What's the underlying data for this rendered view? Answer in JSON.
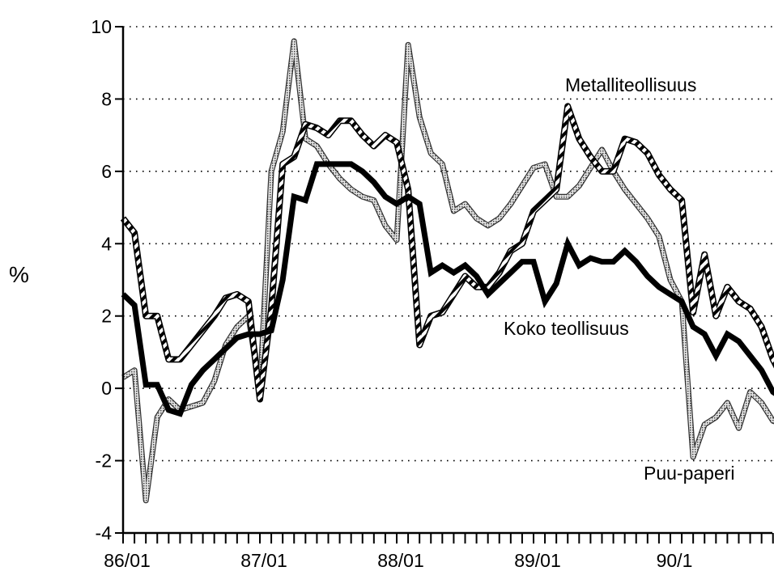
{
  "chart_data": {
    "type": "line",
    "ylabel": "%",
    "ylim": [
      -4,
      10
    ],
    "yticks": [
      10,
      8,
      6,
      4,
      2,
      0,
      -2,
      -4
    ],
    "ytick_labels": [
      "10",
      "8",
      "6",
      "4",
      "2",
      "0",
      "-2",
      "-4"
    ],
    "xlim": [
      0,
      57
    ],
    "xtick_labels": [
      {
        "index": 0,
        "label": "86/01"
      },
      {
        "index": 12,
        "label": "87/01"
      },
      {
        "index": 24,
        "label": "88/01"
      },
      {
        "index": 36,
        "label": "89/01"
      },
      {
        "index": 48,
        "label": "90/1"
      }
    ],
    "grid": "horizontal dotted",
    "series": [
      {
        "name": "Metalliteollisuus",
        "style": "hatched",
        "values": [
          4.7,
          4.3,
          2.0,
          2.0,
          0.8,
          0.8,
          1.2,
          1.6,
          2.0,
          2.5,
          2.6,
          2.4,
          -0.3,
          2.2,
          6.2,
          6.4,
          7.3,
          7.2,
          7.0,
          7.4,
          7.4,
          7.0,
          6.7,
          7.0,
          6.8,
          5.5,
          1.2,
          2.0,
          2.1,
          2.6,
          3.1,
          2.8,
          2.8,
          3.2,
          3.8,
          4.0,
          4.9,
          5.2,
          5.5,
          7.8,
          6.9,
          6.4,
          6.0,
          6.0,
          6.9,
          6.8,
          6.5,
          5.9,
          5.5,
          5.2,
          2.1,
          3.7,
          2.0,
          2.8,
          2.4,
          2.2,
          1.7,
          0.8,
          0.2
        ]
      },
      {
        "name": "Koko teollisuus",
        "style": "bold",
        "values": [
          2.6,
          2.3,
          0.1,
          0.1,
          -0.6,
          -0.7,
          0.1,
          0.5,
          0.8,
          1.1,
          1.4,
          1.5,
          1.5,
          1.6,
          3.0,
          5.3,
          5.2,
          6.2,
          6.2,
          6.2,
          6.2,
          6.0,
          5.7,
          5.3,
          5.1,
          5.3,
          5.1,
          3.2,
          3.4,
          3.2,
          3.4,
          3.1,
          2.6,
          2.9,
          3.2,
          3.5,
          3.5,
          2.4,
          2.9,
          4.0,
          3.4,
          3.6,
          3.5,
          3.5,
          3.8,
          3.5,
          3.1,
          2.8,
          2.6,
          2.4,
          1.7,
          1.5,
          0.9,
          1.5,
          1.3,
          0.9,
          0.5,
          -0.1,
          -0.3
        ]
      },
      {
        "name": "Puu-paperi",
        "style": "dotted",
        "values": [
          0.3,
          0.5,
          -3.1,
          -0.8,
          -0.3,
          -0.6,
          -0.5,
          -0.4,
          0.2,
          1.2,
          1.7,
          2.0,
          -0.1,
          6.0,
          7.1,
          9.6,
          6.9,
          6.7,
          6.2,
          5.8,
          5.5,
          5.3,
          5.2,
          4.5,
          4.1,
          9.5,
          7.5,
          6.5,
          6.2,
          4.9,
          5.1,
          4.7,
          4.5,
          4.7,
          5.1,
          5.6,
          6.1,
          6.2,
          5.3,
          5.3,
          5.6,
          6.1,
          6.6,
          6.0,
          5.5,
          5.1,
          4.7,
          4.2,
          3.0,
          2.4,
          -1.9,
          -1.0,
          -0.8,
          -0.4,
          -1.1,
          -0.1,
          -0.4,
          -0.9,
          -1.0
        ]
      }
    ]
  }
}
